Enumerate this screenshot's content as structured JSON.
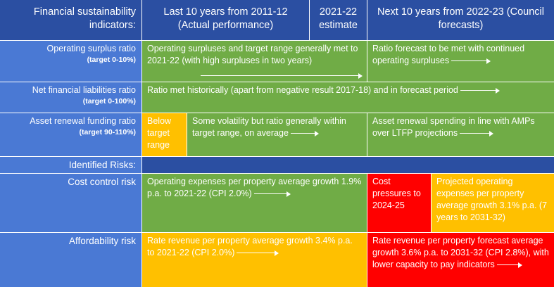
{
  "header": {
    "col1": "Financial sustainability indicators:",
    "col2": "Last 10 years from 2011-12 (Actual performance)",
    "col3": "2021-22 estimate",
    "col4": "Next 10 years from 2022-23 (Council forecasts)"
  },
  "rows": {
    "operating": {
      "label": "Operating surplus ratio",
      "target": "(target 0-10%)",
      "past": "Operating surpluses and target range generally met to 2021-22 (with high surpluses in two years)",
      "future": "Ratio forecast to be met with continued operating surpluses"
    },
    "netfin": {
      "label": "Net financial liabilities ratio",
      "target": "(target 0-100%)",
      "all": "Ratio met historically (apart from negative result 2017-18) and in forecast period"
    },
    "asset": {
      "label": "Asset renewal funding ratio",
      "target": "(target 90-110%)",
      "below": "Below target range",
      "past": "Some volatility but ratio generally within target range, on average",
      "future": "Asset renewal spending in line with AMPs over LTFP projections"
    },
    "risks": {
      "label": "Identified Risks:"
    },
    "cost": {
      "label": "Cost control risk",
      "past": "Operating expenses per property average growth 1.9% p.a. to 2021-22 (CPI 2.0%)",
      "pressure": "Cost pressures to 2024-25",
      "future": "Projected operating expenses per property average growth 3.1% p.a. (7 years to 2031-32)"
    },
    "afford": {
      "label": "Affordability risk",
      "past": "Rate revenue per property average growth  3.4% p.a. to 2021-22 (CPI 2.0%)",
      "future": "Rate revenue per property forecast average growth 3.6% p.a. to 2031-32 (CPI 2.8%), with lower capacity to pay indicators"
    }
  },
  "colors": {
    "navy": "#2b4fa2",
    "blue": "#4a79d4",
    "green": "#70ac46",
    "yellow": "#ffc000",
    "red": "#ff0000"
  }
}
